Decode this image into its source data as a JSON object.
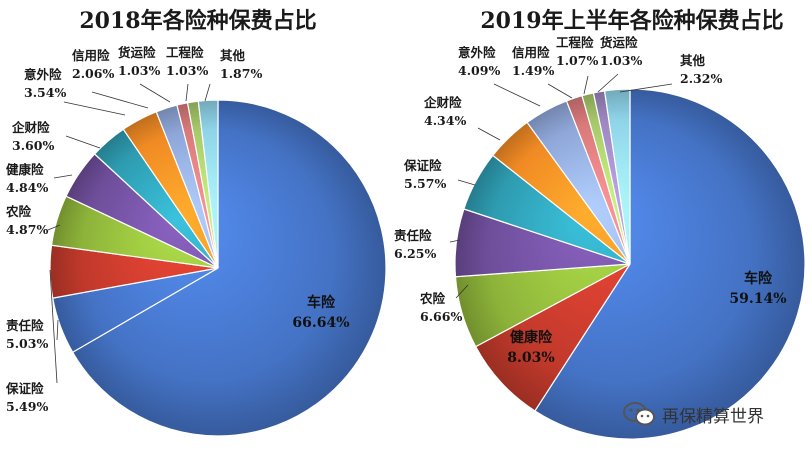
{
  "chart_data": [
    {
      "type": "pie",
      "title": "2018年各险种保费占比",
      "slices": [
        {
          "label": "车险",
          "value": 66.64,
          "display": "66.64%",
          "color": "#4472C4"
        },
        {
          "label": "保证险",
          "value": 5.49,
          "display": "5.49%",
          "color": "#4472C4"
        },
        {
          "label": "责任险",
          "value": 5.03,
          "display": "5.03%",
          "color": "#C0392B"
        },
        {
          "label": "农险",
          "value": 4.87,
          "display": "4.87%",
          "color": "#8DB33A"
        },
        {
          "label": "健康险",
          "value": 4.84,
          "display": "4.84%",
          "color": "#6E4E9A"
        },
        {
          "label": "企财险",
          "value": 3.6,
          "display": "3.60%",
          "color": "#2E9BB0"
        },
        {
          "label": "意外险",
          "value": 3.54,
          "display": "3.54%",
          "color": "#F08A24"
        },
        {
          "label": "信用险",
          "value": 2.06,
          "display": "2.06%",
          "color": "#8EA6D8"
        },
        {
          "label": "货运险",
          "value": 1.03,
          "display": "1.03%",
          "color": "#D9797A"
        },
        {
          "label": "工程险",
          "value": 1.03,
          "display": "1.03%",
          "color": "#A6C86A"
        },
        {
          "label": "其他",
          "value": 1.87,
          "display": "1.87%",
          "color": "#8FD3E8"
        }
      ]
    },
    {
      "type": "pie",
      "title": "2019年上半年各险种保费占比",
      "slices": [
        {
          "label": "车险",
          "value": 59.14,
          "display": "59.14%",
          "color": "#4472C4"
        },
        {
          "label": "健康险",
          "value": 8.03,
          "display": "8.03%",
          "color": "#C0392B"
        },
        {
          "label": "农险",
          "value": 6.66,
          "display": "6.66%",
          "color": "#8DB33A"
        },
        {
          "label": "责任险",
          "value": 6.25,
          "display": "6.25%",
          "color": "#6E4E9A"
        },
        {
          "label": "保证险",
          "value": 5.57,
          "display": "5.57%",
          "color": "#2E9BB0"
        },
        {
          "label": "企财险",
          "value": 4.34,
          "display": "4.34%",
          "color": "#F08A24"
        },
        {
          "label": "意外险",
          "value": 4.09,
          "display": "4.09%",
          "color": "#8EA6D8"
        },
        {
          "label": "信用险",
          "value": 1.49,
          "display": "1.49%",
          "color": "#D9797A"
        },
        {
          "label": "工程险",
          "value": 1.07,
          "display": "1.07%",
          "color": "#A6C86A"
        },
        {
          "label": "货运险",
          "value": 1.03,
          "display": "1.03%",
          "color": "#9C87C0"
        },
        {
          "label": "其他",
          "value": 2.32,
          "display": "2.32%",
          "color": "#8FD3E8"
        }
      ]
    }
  ],
  "watermark": {
    "text": "再保精算世界",
    "icon": "wechat-icon"
  }
}
